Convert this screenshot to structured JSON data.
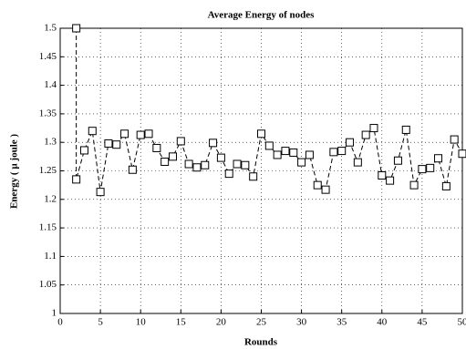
{
  "chart_data": {
    "type": "line",
    "title": "Average Energy of nodes",
    "x_label": "Rounds",
    "y_label": "Energy ( µ joule )",
    "x": [
      2,
      2,
      3,
      4,
      5,
      6,
      7,
      8,
      9,
      10,
      11,
      12,
      13,
      14,
      15,
      16,
      17,
      18,
      19,
      20,
      21,
      22,
      23,
      24,
      25,
      26,
      27,
      28,
      29,
      30,
      31,
      32,
      33,
      34,
      35,
      36,
      37,
      38,
      39,
      40,
      41,
      42,
      43,
      44,
      45,
      46,
      47,
      48,
      49,
      50
    ],
    "values": [
      1.5,
      1.235,
      1.286,
      1.32,
      1.213,
      1.298,
      1.296,
      1.315,
      1.252,
      1.313,
      1.315,
      1.29,
      1.266,
      1.275,
      1.302,
      1.262,
      1.256,
      1.26,
      1.299,
      1.273,
      1.245,
      1.262,
      1.26,
      1.24,
      1.315,
      1.294,
      1.278,
      1.285,
      1.282,
      1.265,
      1.278,
      1.225,
      1.217,
      1.283,
      1.285,
      1.3,
      1.265,
      1.313,
      1.325,
      1.242,
      1.233,
      1.268,
      1.322,
      1.225,
      1.253,
      1.255,
      1.272,
      1.223,
      1.305,
      1.28
    ],
    "color": "#000000",
    "xlim": [
      0,
      50
    ],
    "xticks": [
      0,
      5,
      10,
      15,
      20,
      25,
      30,
      35,
      40,
      45,
      50
    ],
    "ylim": [
      1,
      1.5
    ],
    "yticks": [
      1,
      1.05,
      1.1,
      1.15,
      1.2,
      1.25,
      1.3,
      1.35,
      1.4,
      1.45,
      1.5
    ],
    "grid": true
  }
}
